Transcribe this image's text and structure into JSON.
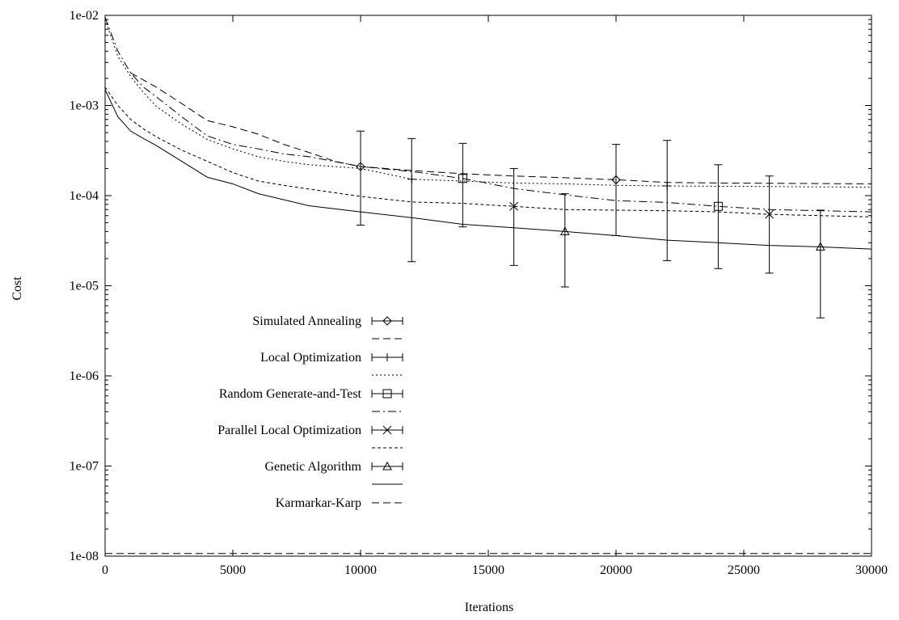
{
  "chart_data": {
    "type": "line",
    "title": "",
    "xlabel": "Iterations",
    "ylabel": "Cost",
    "xlim": [
      0,
      30000
    ],
    "ylim": [
      1e-08,
      0.01
    ],
    "yscale": "log",
    "grid": false,
    "legend_position": "bottom-left",
    "x_ticks": [
      0,
      5000,
      10000,
      15000,
      20000,
      25000,
      30000
    ],
    "x_tick_labels": [
      "0",
      "5000",
      "10000",
      "15000",
      "20000",
      "25000",
      "30000"
    ],
    "y_ticks": [
      1e-08,
      1e-07,
      1e-06,
      1e-05,
      0.0001,
      0.001,
      0.01
    ],
    "y_tick_labels": [
      "1e-08",
      "1e-07",
      "1e-06",
      "1e-05",
      "1e-04",
      "1e-03",
      "1e-02"
    ],
    "series": [
      {
        "name": "Simulated Annealing",
        "dash": "9,5",
        "marker": "diamond",
        "x": [
          1000,
          2000,
          3000,
          4000,
          5000,
          6000,
          7000,
          8000,
          9000,
          10000,
          12000,
          14000,
          16000,
          18000,
          20000,
          22000,
          24000,
          26000,
          28000,
          30000
        ],
        "y": [
          0.0023,
          0.0016,
          0.00105,
          0.00068,
          0.00058,
          0.00048,
          0.00037,
          0.0003,
          0.00024,
          0.00021,
          0.00019,
          0.000175,
          0.000165,
          0.000158,
          0.00015,
          0.00014,
          0.000138,
          0.000137,
          0.000136,
          0.000135
        ],
        "error_bars": [
          {
            "x": 10000,
            "y": 0.00021,
            "low": 4.7e-05,
            "high": 0.00052
          },
          {
            "x": 20000,
            "y": 0.00015,
            "low": 3.6e-05,
            "high": 0.00037
          }
        ]
      },
      {
        "name": "Local Optimization",
        "dash": "2,3",
        "marker": "plus",
        "x": [
          0,
          500,
          1000,
          1500,
          2000,
          3000,
          4000,
          5000,
          6000,
          7000,
          8000,
          10000,
          12000,
          14000,
          16000,
          18000,
          20000,
          22000,
          24000,
          26000,
          28000,
          30000
        ],
        "y": [
          0.009,
          0.0035,
          0.0021,
          0.0014,
          0.00098,
          0.00062,
          0.00042,
          0.00033,
          0.00027,
          0.00024,
          0.00022,
          0.0002,
          0.000152,
          0.000145,
          0.000138,
          0.000135,
          0.00013,
          0.000128,
          0.000127,
          0.000126,
          0.000125,
          0.000124
        ],
        "error_bars": [
          {
            "x": 12000,
            "y": 0.000152,
            "low": 1.85e-05,
            "high": 0.00043
          },
          {
            "x": 22000,
            "y": 0.000128,
            "low": 1.9e-05,
            "high": 0.00041
          }
        ]
      },
      {
        "name": "Random Generate-and-Test",
        "dash": "10,4,2,4",
        "marker": "square",
        "x": [
          0,
          500,
          1000,
          1500,
          2000,
          3000,
          4000,
          5000,
          6000,
          7000,
          8000,
          10000,
          12000,
          14000,
          16000,
          18000,
          20000,
          22000,
          24000,
          26000,
          28000,
          30000
        ],
        "y": [
          0.0095,
          0.004,
          0.0023,
          0.0016,
          0.00125,
          0.00075,
          0.00046,
          0.00037,
          0.00033,
          0.00029,
          0.00027,
          0.00021,
          0.000185,
          0.000155,
          0.00012,
          0.000102,
          8.8e-05,
          8.4e-05,
          7.6e-05,
          7e-05,
          6.8e-05,
          6.6e-05
        ],
        "error_bars": [
          {
            "x": 14000,
            "y": 0.000155,
            "low": 4.5e-05,
            "high": 0.00038
          },
          {
            "x": 24000,
            "y": 7.6e-05,
            "low": 1.55e-05,
            "high": 0.00022
          }
        ]
      },
      {
        "name": "Parallel Local Optimization",
        "dash": "4,3",
        "marker": "cross",
        "x": [
          0,
          500,
          1000,
          1500,
          2000,
          3000,
          4000,
          5000,
          6000,
          7000,
          8000,
          10000,
          12000,
          14000,
          16000,
          18000,
          20000,
          22000,
          24000,
          26000,
          28000,
          30000
        ],
        "y": [
          0.0016,
          0.001,
          0.0007,
          0.00055,
          0.00045,
          0.00032,
          0.00024,
          0.00018,
          0.000145,
          0.00013,
          0.000118,
          9.8e-05,
          8.5e-05,
          8.2e-05,
          7.6e-05,
          7e-05,
          6.9e-05,
          6.8e-05,
          6.6e-05,
          6.2e-05,
          6e-05,
          5.8e-05
        ],
        "error_bars": [
          {
            "x": 16000,
            "y": 7.6e-05,
            "low": 1.68e-05,
            "high": 0.0002
          },
          {
            "x": 26000,
            "y": 6.2e-05,
            "low": 1.38e-05,
            "high": 0.000165
          }
        ]
      },
      {
        "name": "Genetic Algorithm",
        "dash": "",
        "marker": "triangle",
        "x": [
          0,
          500,
          1000,
          1500,
          2000,
          3000,
          4000,
          5000,
          6000,
          7000,
          8000,
          10000,
          12000,
          14000,
          16000,
          18000,
          20000,
          22000,
          24000,
          26000,
          28000,
          30000
        ],
        "y": [
          0.0015,
          0.00075,
          0.00052,
          0.00043,
          0.00036,
          0.00024,
          0.00016,
          0.000135,
          0.000105,
          9e-05,
          7.7e-05,
          6.6e-05,
          5.7e-05,
          4.8e-05,
          4.4e-05,
          4e-05,
          3.6e-05,
          3.2e-05,
          3e-05,
          2.8e-05,
          2.7e-05,
          2.55e-05
        ],
        "error_bars": [
          {
            "x": 18000,
            "y": 4e-05,
            "low": 9.7e-06,
            "high": 0.000105
          },
          {
            "x": 28000,
            "y": 2.7e-05,
            "low": 4.4e-06,
            "high": 6.9e-05
          }
        ]
      },
      {
        "name": "Karmarkar-Karp",
        "dash": "9,5",
        "marker": "none",
        "x": [
          0,
          30000
        ],
        "y": [
          1.07e-08,
          1.07e-08
        ],
        "error_bars": []
      }
    ]
  }
}
